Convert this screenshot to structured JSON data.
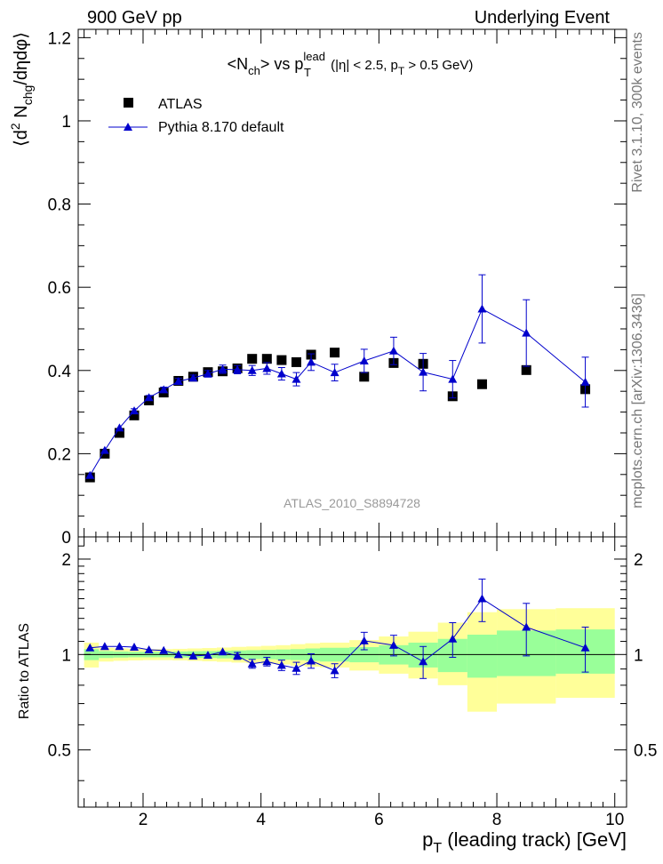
{
  "header": {
    "left_label": "900 GeV pp",
    "right_label": "Underlying Event"
  },
  "side_labels": {
    "rivet": "Rivet 3.1.10,  300k events",
    "mcplots": "mcplots.cern.ch [arXiv:1306.3436]"
  },
  "colors": {
    "data_marker": "#000000",
    "mc_line": "#0000cc",
    "band_inner": "#99ff99",
    "band_outer": "#ffff99",
    "watermark": "#999999"
  },
  "chart_data": [
    {
      "type": "scatter",
      "panel": "main",
      "title": "<N_ch> vs p_T^lead (|η| < 2.5, p_T > 0.5 GeV)",
      "title_parts": {
        "a": "<N",
        "a_sub": "ch",
        "b": "> vs p",
        "b_sup": "lead",
        "b_sub": "T",
        "c": " (|η| < 2.5, p",
        "c_sub": "T",
        "d": " > 0.5 GeV)"
      },
      "ylabel": "⟨d² N_chg/dηdφ⟩",
      "ylabel_parts": {
        "a": "⟨d",
        "a_sup": "2",
        "b": " N",
        "b_sub": "chg",
        "c": "/dηdφ⟩"
      },
      "xlabel": "",
      "xlim": [
        0.9,
        10.2
      ],
      "ylim": [
        0,
        1.22
      ],
      "yticks": [
        "0",
        "0.2",
        "0.4",
        "0.6",
        "0.8",
        "1",
        "1.2"
      ],
      "ytick_values": [
        0,
        0.2,
        0.4,
        0.6,
        0.8,
        1.0,
        1.2
      ],
      "watermark": "ATLAS_2010_S8894728",
      "legend": {
        "placement": "top-left",
        "entries": [
          "ATLAS",
          "Pythia 8.170 default"
        ]
      },
      "series": [
        {
          "name": "ATLAS",
          "marker": "square",
          "x": [
            1.1,
            1.35,
            1.6,
            1.85,
            2.1,
            2.35,
            2.6,
            2.85,
            3.1,
            3.35,
            3.6,
            3.85,
            4.1,
            4.35,
            4.6,
            4.85,
            5.25,
            5.75,
            6.25,
            6.75,
            7.25,
            7.75,
            8.5,
            9.5
          ],
          "y": [
            0.143,
            0.2,
            0.25,
            0.292,
            0.328,
            0.347,
            0.375,
            0.385,
            0.396,
            0.398,
            0.405,
            0.428,
            0.428,
            0.425,
            0.42,
            0.438,
            0.443,
            0.385,
            0.418,
            0.416,
            0.338,
            0.367,
            0.401,
            0.355
          ]
        },
        {
          "name": "Pythia 8.170 default",
          "marker": "triangle",
          "x": [
            1.1,
            1.35,
            1.6,
            1.85,
            2.1,
            2.35,
            2.6,
            2.85,
            3.1,
            3.35,
            3.6,
            3.85,
            4.1,
            4.35,
            4.6,
            4.85,
            5.25,
            5.75,
            6.25,
            6.75,
            7.25,
            7.75,
            8.5,
            9.5
          ],
          "y": [
            0.148,
            0.208,
            0.262,
            0.303,
            0.335,
            0.354,
            0.374,
            0.382,
            0.392,
            0.403,
            0.402,
            0.4,
            0.405,
            0.392,
            0.379,
            0.42,
            0.395,
            0.423,
            0.447,
            0.396,
            0.379,
            0.548,
            0.49,
            0.372
          ],
          "err": [
            0.003,
            0.004,
            0.004,
            0.005,
            0.005,
            0.006,
            0.007,
            0.007,
            0.008,
            0.01,
            0.01,
            0.012,
            0.014,
            0.015,
            0.016,
            0.02,
            0.02,
            0.028,
            0.033,
            0.045,
            0.045,
            0.082,
            0.08,
            0.06
          ]
        }
      ]
    },
    {
      "type": "scatter",
      "panel": "ratio",
      "ylabel": "Ratio to ATLAS",
      "xlabel": "p_T (leading track) [GeV]",
      "xlabel_parts": {
        "a": "p",
        "a_sub": "T",
        "b": " (leading track) [GeV]"
      },
      "xlim": [
        0.9,
        10.2
      ],
      "ylim": [
        0.33,
        2.35
      ],
      "yscale": "log",
      "yticks": [
        "0.5",
        "1",
        "2"
      ],
      "ytick_values": [
        0.5,
        1.0,
        2.0
      ],
      "xticks": [
        "2",
        "4",
        "6",
        "8",
        "10"
      ],
      "xtick_values": [
        2,
        4,
        6,
        8,
        10
      ],
      "bands": {
        "edges": [
          1.0,
          1.25,
          1.5,
          1.75,
          2.0,
          2.25,
          2.5,
          2.75,
          3.0,
          3.25,
          3.5,
          3.75,
          4.0,
          4.25,
          4.5,
          4.75,
          5.0,
          5.5,
          6.0,
          6.5,
          7.0,
          7.5,
          8.0,
          9.0,
          10.0
        ],
        "inner_lo": [
          0.96,
          0.975,
          0.978,
          0.98,
          0.98,
          0.98,
          0.978,
          0.976,
          0.975,
          0.972,
          0.97,
          0.968,
          0.966,
          0.963,
          0.96,
          0.955,
          0.95,
          0.945,
          0.93,
          0.91,
          0.88,
          0.845,
          0.855,
          0.87
        ],
        "inner_hi": [
          1.04,
          1.025,
          1.022,
          1.02,
          1.02,
          1.02,
          1.022,
          1.024,
          1.025,
          1.028,
          1.03,
          1.032,
          1.034,
          1.037,
          1.04,
          1.045,
          1.05,
          1.055,
          1.07,
          1.09,
          1.12,
          1.155,
          1.19,
          1.2
        ],
        "outer_lo": [
          0.91,
          0.95,
          0.955,
          0.958,
          0.96,
          0.96,
          0.958,
          0.955,
          0.952,
          0.948,
          0.943,
          0.94,
          0.935,
          0.93,
          0.922,
          0.915,
          0.91,
          0.89,
          0.87,
          0.84,
          0.8,
          0.66,
          0.7,
          0.73
        ],
        "outer_hi": [
          1.09,
          1.05,
          1.045,
          1.042,
          1.04,
          1.04,
          1.042,
          1.045,
          1.048,
          1.052,
          1.057,
          1.06,
          1.065,
          1.07,
          1.078,
          1.085,
          1.09,
          1.11,
          1.14,
          1.18,
          1.26,
          1.36,
          1.39,
          1.4
        ]
      },
      "series": [
        {
          "name": "Pythia 8.170 default / ATLAS",
          "x": [
            1.1,
            1.35,
            1.6,
            1.85,
            2.1,
            2.35,
            2.6,
            2.85,
            3.1,
            3.35,
            3.6,
            3.85,
            4.1,
            4.35,
            4.6,
            4.85,
            5.25,
            5.75,
            6.25,
            6.75,
            7.25,
            7.75,
            8.5,
            9.5
          ],
          "y": [
            1.05,
            1.06,
            1.06,
            1.055,
            1.035,
            1.03,
            1.0,
            0.99,
            0.995,
            1.02,
            0.99,
            0.935,
            0.95,
            0.925,
            0.905,
            0.955,
            0.89,
            1.105,
            1.07,
            0.95,
            1.12,
            1.5,
            1.22,
            1.05
          ],
          "err": [
            0.02,
            0.02,
            0.02,
            0.02,
            0.02,
            0.02,
            0.02,
            0.02,
            0.02,
            0.02,
            0.025,
            0.03,
            0.03,
            0.035,
            0.04,
            0.05,
            0.045,
            0.07,
            0.08,
            0.11,
            0.14,
            0.23,
            0.23,
            0.17
          ]
        }
      ]
    }
  ]
}
